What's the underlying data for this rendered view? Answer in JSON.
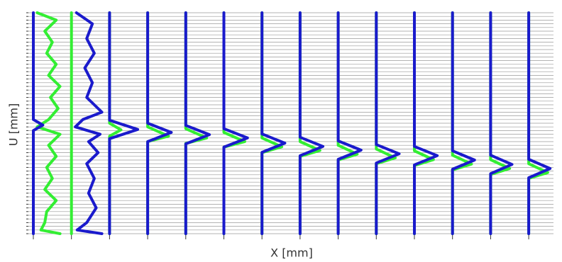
{
  "chart_data": {
    "type": "profiles",
    "xlabel": "X [mm]",
    "ylabel": "U [mm]",
    "xlim": [
      -0.13,
      13.65
    ],
    "xticks": [
      0,
      1,
      2,
      3,
      4,
      5,
      6,
      7,
      8,
      9,
      10,
      11,
      12,
      13
    ],
    "ylim": [
      0,
      60
    ],
    "yticks": [
      0,
      1,
      2,
      3,
      4,
      5,
      6,
      7,
      8,
      9,
      10,
      11,
      12,
      13,
      14,
      15,
      16,
      17,
      18,
      19,
      20,
      21,
      22,
      23,
      24,
      25,
      26,
      27,
      28,
      29,
      30,
      31,
      32,
      33,
      34,
      35,
      36,
      37,
      38,
      39,
      40,
      41,
      42,
      43,
      44,
      45,
      46,
      47,
      48,
      49,
      50,
      51,
      52,
      53,
      54,
      55,
      56,
      57,
      58,
      59,
      60
    ],
    "grid": true,
    "profiles": [
      {
        "station": 0,
        "color": "#33ee33",
        "u": [
          60,
          58,
          55,
          52,
          49,
          46,
          43,
          40,
          37,
          34,
          31,
          29,
          27,
          24,
          21,
          18,
          15,
          12,
          9,
          6,
          3,
          1,
          0
        ],
        "dx": [
          0.1,
          0.6,
          0.3,
          0.5,
          0.35,
          0.6,
          0.4,
          0.7,
          0.45,
          0.65,
          0.4,
          0.1,
          0.7,
          0.4,
          0.6,
          0.35,
          0.5,
          0.3,
          0.6,
          0.35,
          0.3,
          0.2,
          0.7
        ]
      },
      {
        "station": 0,
        "color": "#1a1acc",
        "u": [
          60,
          31,
          29.5,
          28,
          0
        ],
        "dx": [
          0,
          0,
          0.25,
          0,
          0
        ]
      },
      {
        "station": 1,
        "color": "#33ee33",
        "u": [
          60,
          0
        ],
        "dx": [
          0,
          0
        ]
      },
      {
        "station": 1,
        "color": "#1a1acc",
        "u": [
          60,
          57,
          53,
          49,
          45,
          41,
          37,
          33,
          31,
          29,
          27,
          25,
          22,
          19,
          15,
          11,
          7,
          3,
          1,
          0
        ],
        "dx": [
          0.13,
          0.55,
          0.4,
          0.6,
          0.35,
          0.55,
          0.4,
          0.8,
          0.3,
          0.1,
          0.75,
          0.45,
          0.7,
          0.4,
          0.6,
          0.45,
          0.65,
          0.4,
          0.15,
          0.8
        ]
      },
      {
        "station": 2,
        "color": "#33ee33",
        "u": [
          60,
          30,
          28.2,
          26.5,
          0
        ],
        "dx": [
          0,
          0,
          0.3,
          0,
          0
        ]
      },
      {
        "station": 2,
        "color": "#1a1acc",
        "u": [
          60,
          30.8,
          28.3,
          25.8,
          0
        ],
        "dx": [
          0,
          0,
          0.74,
          0,
          0
        ]
      },
      {
        "station": 3,
        "color": "#33ee33",
        "u": [
          60,
          29,
          26.5,
          25,
          0
        ],
        "dx": [
          0,
          0,
          0.55,
          0,
          0
        ]
      },
      {
        "station": 3,
        "color": "#1a1acc",
        "u": [
          60,
          30,
          27.5,
          25,
          0
        ],
        "dx": [
          0,
          0,
          0.62,
          0,
          0
        ]
      },
      {
        "station": 4,
        "color": "#33ee33",
        "u": [
          60,
          28.5,
          26,
          24.5,
          0
        ],
        "dx": [
          0,
          0,
          0.55,
          0,
          0
        ]
      },
      {
        "station": 4,
        "color": "#1a1acc",
        "u": [
          60,
          29.4,
          26.9,
          24.4,
          0
        ],
        "dx": [
          0,
          0,
          0.62,
          0,
          0
        ]
      },
      {
        "station": 5,
        "color": "#33ee33",
        "u": [
          60,
          27.5,
          25,
          23.5,
          0
        ],
        "dx": [
          0,
          0,
          0.55,
          0,
          0
        ]
      },
      {
        "station": 5,
        "color": "#1a1acc",
        "u": [
          60,
          28.5,
          26,
          23.5,
          0
        ],
        "dx": [
          0,
          0,
          0.62,
          0,
          0
        ]
      },
      {
        "station": 6,
        "color": "#33ee33",
        "u": [
          60,
          26,
          23.6,
          22,
          0
        ],
        "dx": [
          0,
          0,
          0.52,
          0,
          0
        ]
      },
      {
        "station": 6,
        "color": "#1a1acc",
        "u": [
          60,
          27.1,
          24.6,
          22.1,
          0
        ],
        "dx": [
          0,
          0,
          0.6,
          0,
          0
        ]
      },
      {
        "station": 7,
        "color": "#33ee33",
        "u": [
          60,
          25,
          22.6,
          21,
          0
        ],
        "dx": [
          0,
          0,
          0.52,
          0,
          0
        ]
      },
      {
        "station": 7,
        "color": "#1a1acc",
        "u": [
          60,
          26.2,
          23.7,
          21.2,
          0
        ],
        "dx": [
          0,
          0,
          0.6,
          0,
          0
        ]
      },
      {
        "station": 8,
        "color": "#33ee33",
        "u": [
          60,
          24,
          21.6,
          20,
          0
        ],
        "dx": [
          0,
          0,
          0.5,
          0,
          0
        ]
      },
      {
        "station": 8,
        "color": "#1a1acc",
        "u": [
          60,
          25.2,
          22.7,
          20.2,
          0
        ],
        "dx": [
          0,
          0,
          0.6,
          0,
          0
        ]
      },
      {
        "station": 9,
        "color": "#33ee33",
        "u": [
          60,
          23,
          20.6,
          19,
          0
        ],
        "dx": [
          0,
          0,
          0.5,
          0,
          0
        ]
      },
      {
        "station": 9,
        "color": "#1a1acc",
        "u": [
          60,
          24.2,
          21.7,
          19.2,
          0
        ],
        "dx": [
          0,
          0,
          0.6,
          0,
          0
        ]
      },
      {
        "station": 10,
        "color": "#33ee33",
        "u": [
          60,
          22.5,
          20.1,
          18.5,
          0
        ],
        "dx": [
          0,
          0,
          0.5,
          0,
          0
        ]
      },
      {
        "station": 10,
        "color": "#1a1acc",
        "u": [
          60,
          23.7,
          21.2,
          18.7,
          0
        ],
        "dx": [
          0,
          0,
          0.6,
          0,
          0
        ]
      },
      {
        "station": 11,
        "color": "#33ee33",
        "u": [
          60,
          21.3,
          18.9,
          17.3,
          0
        ],
        "dx": [
          0,
          0,
          0.5,
          0,
          0
        ]
      },
      {
        "station": 11,
        "color": "#1a1acc",
        "u": [
          60,
          22.5,
          20,
          17.5,
          0
        ],
        "dx": [
          0,
          0,
          0.58,
          0,
          0
        ]
      },
      {
        "station": 12,
        "color": "#33ee33",
        "u": [
          60,
          20.1,
          17.7,
          16.1,
          0
        ],
        "dx": [
          0,
          0,
          0.5,
          0,
          0
        ]
      },
      {
        "station": 12,
        "color": "#1a1acc",
        "u": [
          60,
          21.3,
          18.8,
          16.3,
          0
        ],
        "dx": [
          0,
          0,
          0.56,
          0,
          0
        ]
      },
      {
        "station": 13,
        "color": "#33ee33",
        "u": [
          60,
          19,
          16.6,
          15,
          0
        ],
        "dx": [
          0,
          0,
          0.5,
          0,
          0
        ]
      },
      {
        "station": 13,
        "color": "#1a1acc",
        "u": [
          60,
          20.2,
          17.7,
          15.2,
          0
        ],
        "dx": [
          0,
          0,
          0.56,
          0,
          0
        ]
      }
    ]
  }
}
